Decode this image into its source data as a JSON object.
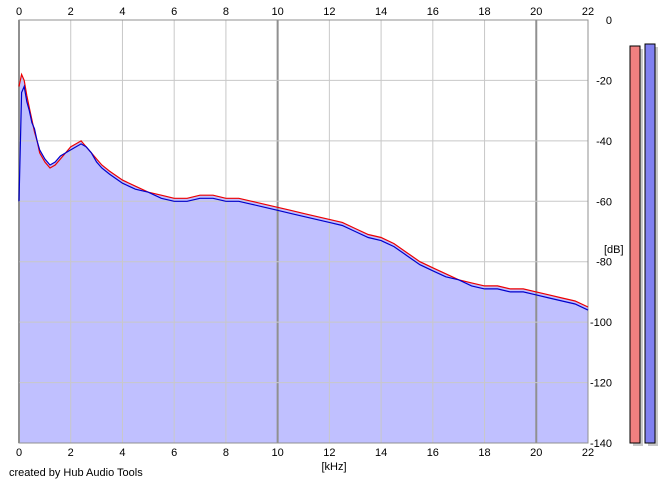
{
  "chart_data": {
    "type": "line",
    "xlabel": "[kHz]",
    "ylabel": "[dB]",
    "xlim": [
      0,
      22
    ],
    "ylim": [
      -140,
      0
    ],
    "x_ticks": [
      "0",
      "2",
      "4",
      "6",
      "8",
      "10",
      "12",
      "14",
      "16",
      "18",
      "20",
      "22"
    ],
    "y_ticks": [
      "0",
      "-20",
      "-40",
      "-60",
      "-80",
      "-100",
      "-120",
      "-140"
    ],
    "grid": true,
    "series": [
      {
        "color": "#ee0000",
        "x": [
          0.0,
          0.1,
          0.2,
          0.3,
          0.4,
          0.5,
          0.6,
          0.7,
          0.8,
          1.0,
          1.2,
          1.4,
          1.6,
          1.8,
          2.0,
          2.2,
          2.4,
          2.6,
          2.8,
          3.0,
          3.2,
          3.5,
          4.0,
          4.5,
          5.0,
          5.5,
          6.0,
          6.5,
          7.0,
          7.5,
          8.0,
          8.5,
          9.0,
          9.5,
          10.0,
          10.5,
          11.0,
          11.5,
          12.0,
          12.5,
          13.0,
          13.5,
          14.0,
          14.5,
          15.0,
          15.5,
          16.0,
          16.5,
          17.0,
          17.5,
          18.0,
          18.5,
          19.0,
          19.5,
          20.0,
          20.5,
          21.0,
          21.5,
          22.0
        ],
        "y": [
          -22,
          -18,
          -20,
          -25,
          -29,
          -33,
          -37,
          -40,
          -44,
          -47,
          -49,
          -48,
          -46,
          -44,
          -42,
          -41,
          -40,
          -42,
          -44,
          -46,
          -48,
          -50,
          -53,
          -55,
          -57,
          -58,
          -59,
          -59,
          -58,
          -58,
          -59,
          -59,
          -60,
          -61,
          -62,
          -63,
          -64,
          -65,
          -66,
          -67,
          -69,
          -71,
          -72,
          -74,
          -77,
          -80,
          -82,
          -84,
          -86,
          -87,
          -88,
          -88,
          -89,
          -89,
          -90,
          -91,
          -92,
          -93,
          -95
        ]
      },
      {
        "color": "#0000cc",
        "x": [
          0.0,
          0.1,
          0.2,
          0.3,
          0.4,
          0.5,
          0.6,
          0.7,
          0.8,
          1.0,
          1.2,
          1.4,
          1.6,
          1.8,
          2.0,
          2.2,
          2.4,
          2.6,
          2.8,
          3.0,
          3.2,
          3.5,
          4.0,
          4.5,
          5.0,
          5.5,
          6.0,
          6.5,
          7.0,
          7.5,
          8.0,
          8.5,
          9.0,
          9.5,
          10.0,
          10.5,
          11.0,
          11.5,
          12.0,
          12.5,
          13.0,
          13.5,
          14.0,
          14.5,
          15.0,
          15.5,
          16.0,
          16.5,
          17.0,
          17.5,
          18.0,
          18.5,
          19.0,
          19.5,
          20.0,
          20.5,
          21.0,
          21.5,
          22.0
        ],
        "y": [
          -60,
          -24,
          -22,
          -27,
          -30,
          -34,
          -36,
          -40,
          -43,
          -46,
          -48,
          -47,
          -45,
          -44,
          -43,
          -42,
          -41,
          -42,
          -44,
          -47,
          -49,
          -51,
          -54,
          -56,
          -57,
          -59,
          -60,
          -60,
          -59,
          -59,
          -60,
          -60,
          -61,
          -62,
          -63,
          -64,
          -65,
          -66,
          -67,
          -68,
          -70,
          -72,
          -73,
          -75,
          -78,
          -81,
          -83,
          -85,
          -86,
          -88,
          -89,
          -89,
          -90,
          -90,
          -91,
          -92,
          -93,
          -94,
          -96
        ]
      }
    ],
    "meters": [
      {
        "color": "#f08080"
      },
      {
        "color": "#8080f0"
      }
    ],
    "colors": {
      "fill": "#c0c0ff",
      "grid_minor": "#c8c8c8",
      "grid_major": "#909090"
    }
  },
  "footer": {
    "credit": "created by Hub Audio Tools"
  }
}
